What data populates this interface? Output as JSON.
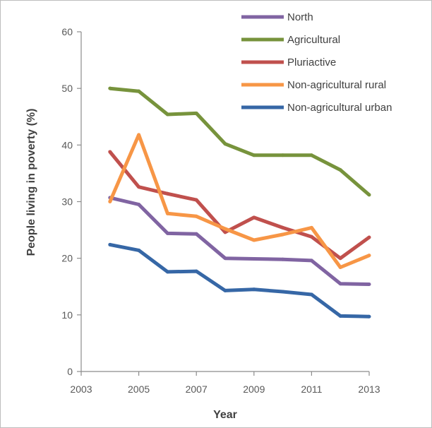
{
  "chart_data": {
    "type": "line",
    "title": "",
    "xlabel": "Year",
    "ylabel": "People living in poverty (%)",
    "xlim": [
      2003,
      2013
    ],
    "ylim": [
      0,
      60
    ],
    "x_ticks": [
      2003,
      2005,
      2007,
      2009,
      2011,
      2013
    ],
    "y_ticks": [
      0,
      10,
      20,
      30,
      40,
      50,
      60
    ],
    "grid": false,
    "legend_position": "top-right",
    "x": [
      2004,
      2005,
      2006,
      2007,
      2008,
      2009,
      2010,
      2011,
      2012,
      2013
    ],
    "series": [
      {
        "name": "North",
        "color": "#8064a2",
        "values": [
          30.7,
          29.5,
          24.4,
          24.3,
          20.0,
          19.9,
          19.8,
          19.6,
          15.5,
          15.4
        ]
      },
      {
        "name": "Agricultural",
        "color": "#77933c",
        "values": [
          50.0,
          49.5,
          45.4,
          45.6,
          40.2,
          38.2,
          38.2,
          38.2,
          35.6,
          31.2
        ]
      },
      {
        "name": "Pluriactive",
        "color": "#c0504d",
        "values": [
          38.8,
          32.6,
          31.4,
          30.3,
          24.6,
          27.2,
          25.4,
          23.8,
          20.0,
          23.7
        ]
      },
      {
        "name": "Non-agricultural rural",
        "color": "#f79646",
        "values": [
          30.0,
          41.8,
          27.9,
          27.4,
          25.2,
          23.2,
          24.2,
          25.4,
          18.4,
          20.5
        ]
      },
      {
        "name": "Non-agricultural urban",
        "color": "#3667a6",
        "values": [
          22.4,
          21.4,
          17.6,
          17.7,
          14.3,
          14.5,
          14.1,
          13.6,
          9.8,
          9.7
        ]
      }
    ]
  }
}
